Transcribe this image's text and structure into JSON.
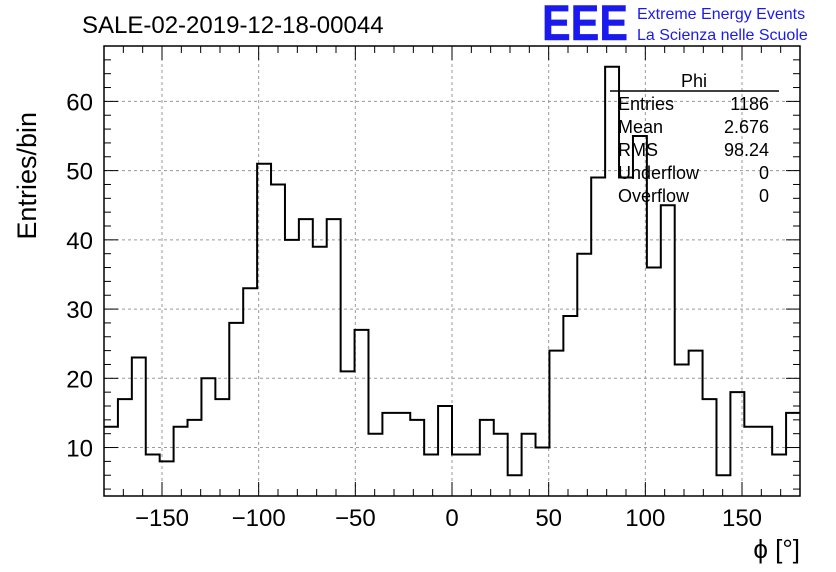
{
  "header": {
    "title": "SALE-02-2019-12-18-00044",
    "logo_text": "EEE",
    "logo_line1": "Extreme Energy Events",
    "logo_line2": "La Scienza nelle Scuole",
    "logo_color": "#1a1aee"
  },
  "stats_box": {
    "title": "Phi",
    "rows": [
      {
        "label": "Entries",
        "value": "1186"
      },
      {
        "label": "Mean",
        "value": "2.676"
      },
      {
        "label": "RMS",
        "value": "98.24"
      },
      {
        "label": "Underflow",
        "value": "0"
      },
      {
        "label": "Overflow",
        "value": "0"
      }
    ]
  },
  "chart_data": {
    "type": "histogram",
    "title": "SALE-02-2019-12-18-00044",
    "xlabel": "ϕ [°]",
    "ylabel": "Entries/bin",
    "xlim": [
      -180,
      180
    ],
    "ylim": [
      3,
      68
    ],
    "bin_width": 7.2,
    "grid": true,
    "x_ticks": [
      -150,
      -100,
      -50,
      0,
      50,
      100,
      150
    ],
    "x_tick_labels": [
      "−150",
      "−100",
      "−50",
      "0",
      "50",
      "100",
      "150"
    ],
    "y_ticks": [
      10,
      20,
      30,
      40,
      50,
      60
    ],
    "y_tick_labels": [
      "10",
      "20",
      "30",
      "40",
      "50",
      "60"
    ],
    "values": [
      13,
      17,
      23,
      9,
      8,
      13,
      14,
      20,
      17,
      28,
      33,
      51,
      48,
      40,
      43,
      39,
      43,
      21,
      27,
      12,
      15,
      15,
      14,
      9,
      16,
      9,
      9,
      14,
      12,
      6,
      12,
      10,
      24,
      29,
      38,
      49,
      65,
      49,
      55,
      36,
      45,
      22,
      24,
      17,
      6,
      18,
      13,
      13,
      9,
      15
    ]
  }
}
